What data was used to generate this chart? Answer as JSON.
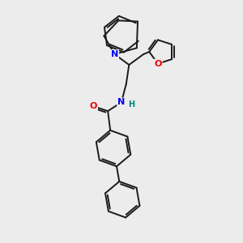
{
  "bg_color": "#ececec",
  "bond_color": "#1a1a1a",
  "bond_width": 1.4,
  "atom_colors": {
    "N": "#0000ee",
    "O": "#ee0000",
    "H": "#008080"
  },
  "font_size_atom": 8,
  "fig_size": [
    3.0,
    3.0
  ],
  "dpi": 100
}
